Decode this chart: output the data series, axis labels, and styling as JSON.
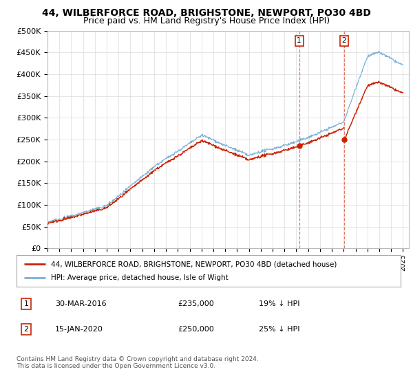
{
  "title": "44, WILBERFORCE ROAD, BRIGHSTONE, NEWPORT, PO30 4BD",
  "subtitle": "Price paid vs. HM Land Registry's House Price Index (HPI)",
  "ylabel_ticks": [
    "£0",
    "£50K",
    "£100K",
    "£150K",
    "£200K",
    "£250K",
    "£300K",
    "£350K",
    "£400K",
    "£450K",
    "£500K"
  ],
  "ytick_values": [
    0,
    50000,
    100000,
    150000,
    200000,
    250000,
    300000,
    350000,
    400000,
    450000,
    500000
  ],
  "xlim_start": 1995.0,
  "xlim_end": 2025.5,
  "ylim_min": 0,
  "ylim_max": 500000,
  "background_color": "#ffffff",
  "grid_color": "#e0e0e0",
  "hpi_color": "#7ab0d4",
  "price_color": "#cc2200",
  "transaction1_date": 2016.24,
  "transaction1_price": 235000,
  "transaction2_date": 2020.04,
  "transaction2_price": 250000,
  "legend_line1": "44, WILBERFORCE ROAD, BRIGHSTONE, NEWPORT, PO30 4BD (detached house)",
  "legend_line2": "HPI: Average price, detached house, Isle of Wight",
  "annotation1_date": "30-MAR-2016",
  "annotation1_price": "£235,000",
  "annotation1_hpi": "19% ↓ HPI",
  "annotation2_date": "15-JAN-2020",
  "annotation2_price": "£250,000",
  "annotation2_hpi": "25% ↓ HPI",
  "footer": "Contains HM Land Registry data © Crown copyright and database right 2024.\nThis data is licensed under the Open Government Licence v3.0.",
  "title_fontsize": 10,
  "subtitle_fontsize": 9
}
